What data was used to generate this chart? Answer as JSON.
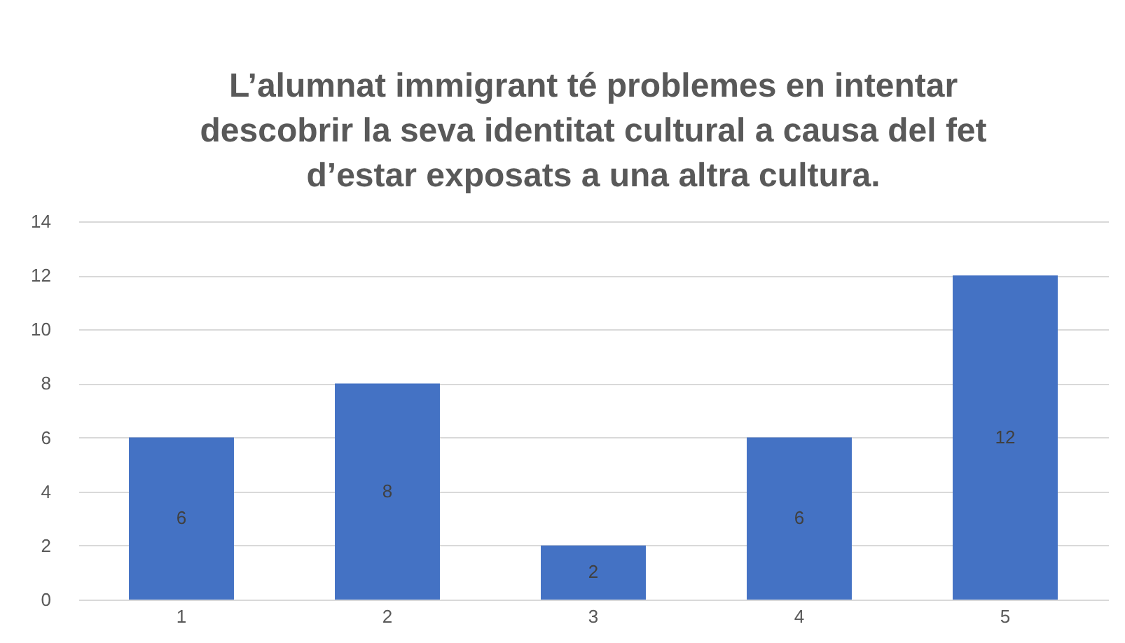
{
  "chart_data": {
    "type": "bar",
    "title": "L’alumnat immigrant té problemes en intentar descobrir la seva identitat cultural a causa del fet d’estar exposats a una altra cultura.",
    "categories": [
      "1",
      "2",
      "3",
      "4",
      "5"
    ],
    "values": [
      6,
      8,
      2,
      6,
      12
    ],
    "color": "#4472c4",
    "ylim": [
      0,
      14
    ],
    "yticks": [
      0,
      2,
      4,
      6,
      8,
      10,
      12,
      14
    ],
    "grid": "y",
    "data_labels": true
  }
}
